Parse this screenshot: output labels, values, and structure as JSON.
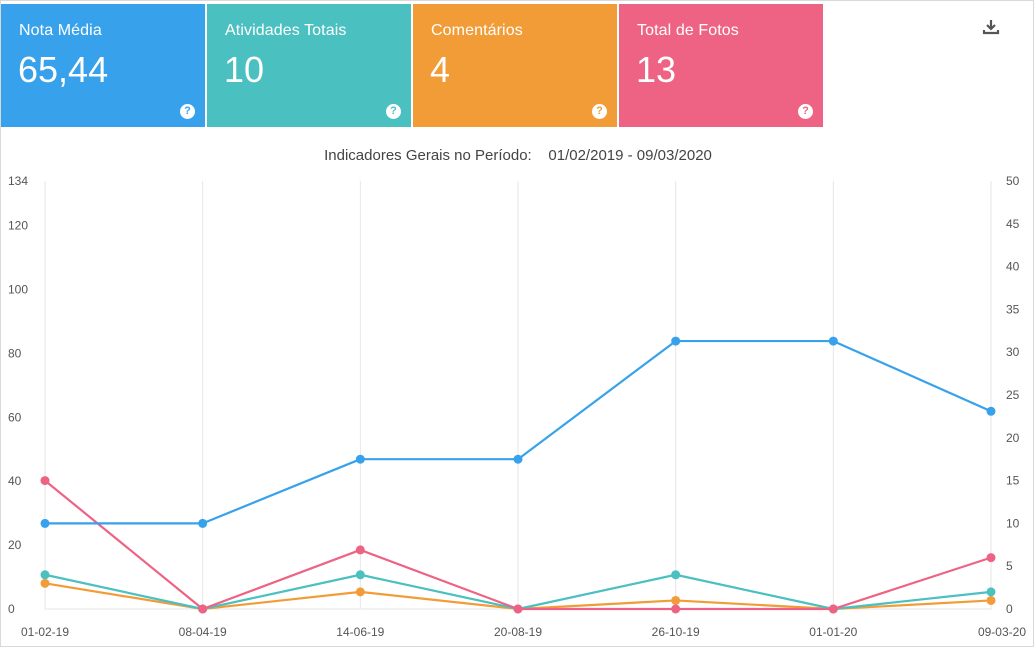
{
  "cards": [
    {
      "label": "Nota Média",
      "value": "65,44",
      "color": "#37a2eb"
    },
    {
      "label": "Atividades Totais",
      "value": "10",
      "color": "#4bc0c0"
    },
    {
      "label": "Comentários",
      "value": "4",
      "color": "#f29c37"
    },
    {
      "label": "Total de Fotos",
      "value": "13",
      "color": "#ee6384"
    }
  ],
  "download_icon": "download-icon",
  "help_icon": "question-circle-icon",
  "chart_title": "Indicadores Gerais no Período:    01/02/2019 - 09/03/2020",
  "chart_data": {
    "type": "line",
    "title": "Indicadores Gerais no Período:    01/02/2019 - 09/03/2020",
    "categories": [
      "01-02-19",
      "08-04-19",
      "14-06-19",
      "20-08-19",
      "26-10-19",
      "01-01-20",
      "09-03-20"
    ],
    "y_left": {
      "range": [
        0,
        134
      ],
      "ticks": [
        0,
        20,
        40,
        60,
        80,
        100,
        120,
        134
      ]
    },
    "y_right": {
      "range": [
        0,
        50
      ],
      "ticks": [
        0,
        5,
        10,
        15,
        20,
        25,
        30,
        35,
        40,
        45,
        50
      ]
    },
    "grid": "vertical",
    "series": [
      {
        "color": "#37a2eb",
        "axis": "right",
        "values": [
          10,
          10,
          17.5,
          17.5,
          31.3,
          31.3,
          23.1
        ]
      },
      {
        "color": "#ee6384",
        "axis": "right",
        "values": [
          15,
          0,
          6.9,
          0,
          0,
          0,
          6
        ]
      },
      {
        "color": "#4bc0c0",
        "axis": "right",
        "values": [
          4,
          0,
          4,
          0,
          4,
          0,
          2
        ]
      },
      {
        "color": "#f29c37",
        "axis": "right",
        "values": [
          3,
          0,
          2,
          0,
          1,
          0,
          1
        ]
      }
    ]
  }
}
